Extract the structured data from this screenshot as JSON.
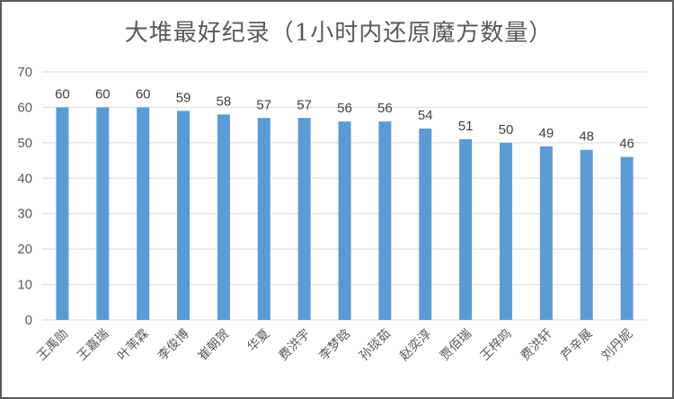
{
  "chart_data": {
    "type": "bar",
    "title": "大堆最好纪录（1小时内还原魔方数量）",
    "xlabel": "",
    "ylabel": "",
    "categories": [
      "王禹勋",
      "王嘉瑞",
      "叶苇霖",
      "李俊博",
      "崔朝贺",
      "华夏",
      "费洪宇",
      "李梦晗",
      "孙琰茹",
      "赵奕淳",
      "贾佰瑞",
      "王梓鸣",
      "费洪轩",
      "芦辛展",
      "刘丹妮"
    ],
    "values": [
      60,
      60,
      60,
      59,
      58,
      57,
      57,
      56,
      56,
      54,
      51,
      50,
      49,
      48,
      46
    ],
    "ylim": [
      0,
      70
    ],
    "yticks": [
      0,
      10,
      20,
      30,
      40,
      50,
      60,
      70
    ],
    "grid": true,
    "legend": "none",
    "bar_color": "#5b9bd5",
    "grid_color": "#d9d9d9"
  }
}
